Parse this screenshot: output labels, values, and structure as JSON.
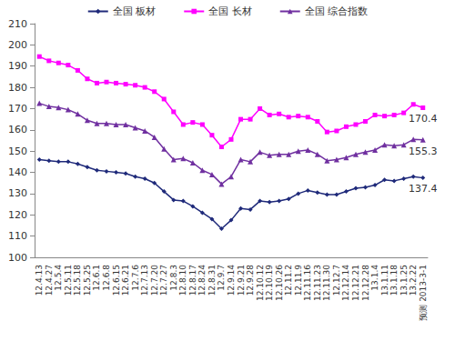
{
  "chart_data": {
    "type": "line",
    "categories": [
      "12.4.13",
      "12.4.27",
      "12.5.4",
      "12.5.11",
      "12.5.18",
      "12.5.25",
      "12.6.1",
      "12.6.8",
      "12.6.15",
      "12.6.21",
      "12.7.6",
      "12.7.13",
      "12.7.20",
      "12.7.27",
      "12.8.3",
      "12.8.10",
      "12.8.17",
      "12.8.24",
      "12.8.31",
      "12.9.7",
      "12.9.14",
      "12.9.21",
      "12.9.28",
      "12.10.12",
      "12.10.19",
      "12.10.26",
      "12.11.2",
      "12.11.9",
      "12.11.16",
      "12.11.23",
      "12.11.30",
      "12.12.7",
      "12.12.14",
      "12.12.21",
      "12.12.28",
      "13.1.4",
      "13.1.11",
      "13.1.18",
      "13.1.25",
      "13.2.22",
      "预测 2013-3-1"
    ],
    "series": [
      {
        "name": "全国 板材",
        "color": "#1f2a7a",
        "marker": "diamond",
        "values": [
          146,
          145.5,
          145,
          145,
          144,
          142.5,
          141,
          140.5,
          140,
          139.5,
          138,
          137,
          135,
          131,
          127,
          126.5,
          124,
          121,
          118,
          113.5,
          117.5,
          123,
          122.5,
          126.5,
          126,
          126.5,
          127.5,
          130,
          131.5,
          130.5,
          129.5,
          129.5,
          131,
          132.5,
          133,
          134,
          136.5,
          136,
          137,
          138,
          137.4
        ]
      },
      {
        "name": "全国 长材",
        "color": "#ff00ff",
        "marker": "square",
        "values": [
          194.5,
          192.5,
          191.5,
          190.5,
          188,
          184,
          182,
          182.5,
          182,
          181.5,
          181,
          180,
          178,
          174.5,
          168.5,
          162.5,
          163.5,
          162.5,
          157.5,
          152,
          155.5,
          165,
          165,
          170,
          167,
          167.5,
          166,
          166.5,
          166,
          164,
          159,
          159.5,
          161.5,
          162.5,
          164,
          167,
          166.5,
          167,
          168,
          172,
          170.4
        ]
      },
      {
        "name": "全国 综合指数",
        "color": "#7030a0",
        "marker": "triangle",
        "values": [
          172.5,
          171,
          170.5,
          169.5,
          167.5,
          164.5,
          163,
          163,
          162.5,
          162.5,
          161,
          159.5,
          156.5,
          151,
          146,
          146.5,
          144.5,
          141,
          139,
          134.5,
          138,
          146,
          145,
          149.5,
          148,
          148.5,
          148.5,
          150,
          150.5,
          148.5,
          145.5,
          146,
          147,
          148.5,
          149.5,
          150.5,
          153,
          152.5,
          153,
          155.5,
          155.3
        ]
      }
    ],
    "annotations": [
      {
        "series": "全国 长材",
        "category": "预测 2013-3-1",
        "text": "170.4"
      },
      {
        "series": "全国 综合指数",
        "category": "预测 2013-3-1",
        "text": "155.3"
      },
      {
        "series": "全国 板材",
        "category": "预测 2013-3-1",
        "text": "137.4"
      }
    ],
    "ylim": [
      100,
      210
    ],
    "yticks": [
      100,
      110,
      120,
      130,
      140,
      150,
      160,
      170,
      180,
      190,
      200,
      210
    ],
    "grid": false,
    "legend": "top"
  }
}
